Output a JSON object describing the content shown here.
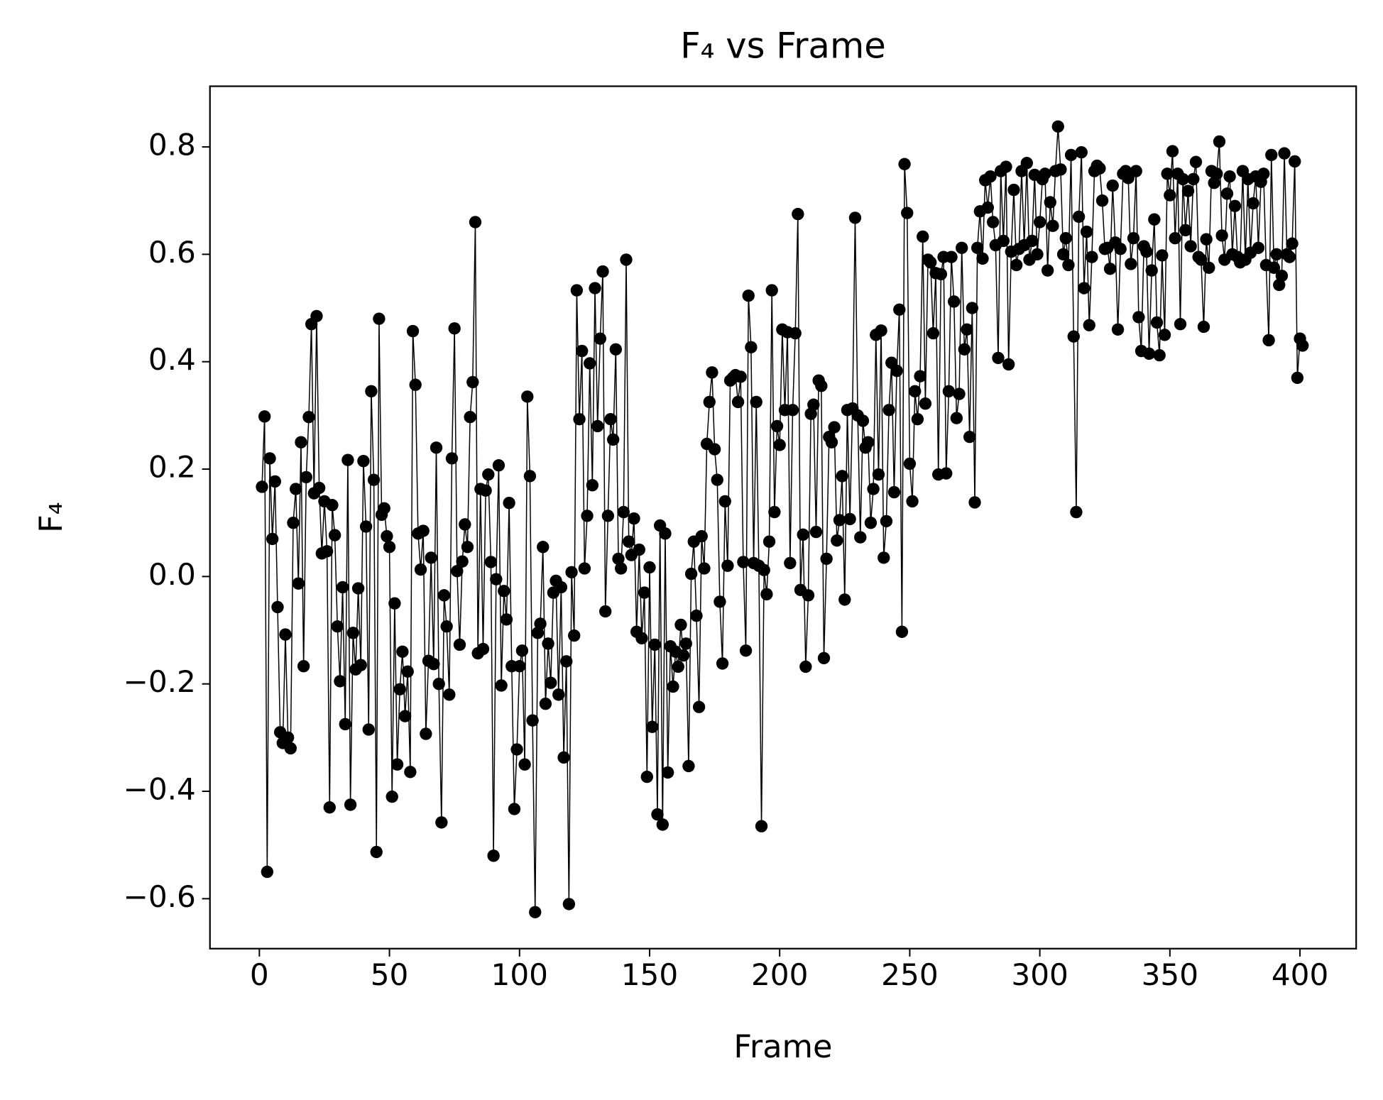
{
  "chart_data": {
    "type": "line",
    "title": "F₄ vs Frame",
    "xlabel": "Frame",
    "ylabel": "F₄",
    "color": "#000000",
    "marker": true,
    "xlim": [
      -19,
      421.6
    ],
    "ylim": [
      -0.693,
      0.913
    ],
    "xticks": [
      0,
      50,
      100,
      150,
      200,
      250,
      300,
      350,
      400
    ],
    "yticks": [
      {
        "value": -0.6,
        "label": "−0.6"
      },
      {
        "value": -0.4,
        "label": "−0.4"
      },
      {
        "value": -0.2,
        "label": "−0.2"
      },
      {
        "value": 0,
        "label": "0.0"
      },
      0.2,
      0.4,
      0.6,
      0.8
    ],
    "x": [
      1,
      2,
      3,
      4,
      5,
      6,
      7,
      8,
      9,
      10,
      11,
      12,
      13,
      14,
      15,
      16,
      17,
      18,
      19,
      20,
      21,
      22,
      23,
      24,
      25,
      26,
      27,
      28,
      29,
      30,
      31,
      32,
      33,
      34,
      35,
      36,
      37,
      38,
      39,
      40,
      41,
      42,
      43,
      44,
      45,
      46,
      47,
      48,
      49,
      50,
      51,
      52,
      53,
      54,
      55,
      56,
      57,
      58,
      59,
      60,
      61,
      62,
      63,
      64,
      65,
      66,
      67,
      68,
      69,
      70,
      71,
      72,
      73,
      74,
      75,
      76,
      77,
      78,
      79,
      80,
      81,
      82,
      83,
      84,
      85,
      86,
      87,
      88,
      89,
      90,
      91,
      92,
      93,
      94,
      95,
      96,
      97,
      98,
      99,
      100,
      101,
      102,
      103,
      104,
      105,
      106,
      107,
      108,
      109,
      110,
      111,
      112,
      113,
      114,
      115,
      116,
      117,
      118,
      119,
      120,
      121,
      122,
      123,
      124,
      125,
      126,
      127,
      128,
      129,
      130,
      131,
      132,
      133,
      134,
      135,
      136,
      137,
      138,
      139,
      140,
      141,
      142,
      143,
      144,
      145,
      146,
      147,
      148,
      149,
      150,
      151,
      152,
      153,
      154,
      155,
      156,
      157,
      158,
      159,
      160,
      161,
      162,
      163,
      164,
      165,
      166,
      167,
      168,
      169,
      170,
      171,
      172,
      173,
      174,
      175,
      176,
      177,
      178,
      179,
      180,
      181,
      182,
      183,
      184,
      185,
      186,
      187,
      188,
      189,
      190,
      191,
      192,
      193,
      194,
      195,
      196,
      197,
      198,
      199,
      200,
      201,
      202,
      203,
      204,
      205,
      206,
      207,
      208,
      209,
      210,
      211,
      212,
      213,
      214,
      215,
      216,
      217,
      218,
      219,
      220,
      221,
      222,
      223,
      224,
      225,
      226,
      227,
      228,
      229,
      230,
      231,
      232,
      233,
      234,
      235,
      236,
      237,
      238,
      239,
      240,
      241,
      242,
      243,
      244,
      245,
      246,
      247,
      248,
      249,
      250,
      251,
      252,
      253,
      254,
      255,
      256,
      257,
      258,
      259,
      260,
      261,
      262,
      263,
      264,
      265,
      266,
      267,
      268,
      269,
      270,
      271,
      272,
      273,
      274,
      275,
      276,
      277,
      278,
      279,
      280,
      281,
      282,
      283,
      284,
      285,
      286,
      287,
      288,
      289,
      290,
      291,
      292,
      293,
      294,
      295,
      296,
      297,
      298,
      299,
      300,
      301,
      302,
      303,
      304,
      305,
      306,
      307,
      308,
      309,
      310,
      311,
      312,
      313,
      314,
      315,
      316,
      317,
      318,
      319,
      320,
      321,
      322,
      323,
      324,
      325,
      326,
      327,
      328,
      329,
      330,
      331,
      332,
      333,
      334,
      335,
      336,
      337,
      338,
      339,
      340,
      341,
      342,
      343,
      344,
      345,
      346,
      347,
      348,
      349,
      350,
      351,
      352,
      353,
      354,
      355,
      356,
      357,
      358,
      359,
      360,
      361,
      362,
      363,
      364,
      365,
      366,
      367,
      368,
      369,
      370,
      371,
      372,
      373,
      374,
      375,
      376,
      377,
      378,
      379,
      380,
      381,
      382,
      383,
      384,
      385,
      386,
      387,
      388,
      389,
      390,
      391,
      392,
      393,
      394,
      395,
      396,
      397,
      398,
      399,
      400,
      401
    ],
    "values": [
      0.167,
      0.298,
      -0.55,
      0.22,
      0.07,
      0.177,
      -0.057,
      -0.29,
      -0.31,
      -0.108,
      -0.3,
      -0.32,
      0.1,
      0.163,
      -0.013,
      0.25,
      -0.167,
      0.185,
      0.297,
      0.47,
      0.155,
      0.485,
      0.165,
      0.043,
      0.14,
      0.047,
      -0.43,
      0.133,
      0.077,
      -0.093,
      -0.195,
      -0.02,
      -0.275,
      0.217,
      -0.425,
      -0.105,
      -0.173,
      -0.022,
      -0.165,
      0.215,
      0.093,
      -0.285,
      0.345,
      0.18,
      -0.513,
      0.48,
      0.115,
      0.127,
      0.075,
      0.055,
      -0.41,
      -0.05,
      -0.35,
      -0.21,
      -0.14,
      -0.26,
      -0.177,
      -0.364,
      0.457,
      0.357,
      0.08,
      0.013,
      0.085,
      -0.293,
      -0.157,
      0.035,
      -0.163,
      0.24,
      -0.2,
      -0.458,
      -0.035,
      -0.093,
      -0.22,
      0.22,
      0.462,
      0.01,
      -0.127,
      0.028,
      0.097,
      0.055,
      0.297,
      0.362,
      0.66,
      -0.143,
      0.163,
      -0.135,
      0.16,
      0.19,
      0.027,
      -0.52,
      -0.005,
      0.207,
      -0.203,
      -0.027,
      -0.08,
      0.137,
      -0.167,
      -0.433,
      -0.322,
      -0.167,
      -0.138,
      -0.35,
      0.335,
      0.187,
      -0.268,
      -0.625,
      -0.105,
      -0.088,
      0.055,
      -0.237,
      -0.125,
      -0.198,
      -0.03,
      -0.008,
      -0.22,
      -0.02,
      -0.337,
      -0.158,
      -0.61,
      0.008,
      -0.11,
      0.533,
      0.293,
      0.42,
      0.015,
      0.113,
      0.397,
      0.17,
      0.537,
      0.28,
      0.443,
      0.568,
      -0.065,
      0.113,
      0.293,
      0.255,
      0.423,
      0.033,
      0.015,
      0.12,
      0.59,
      0.065,
      0.04,
      0.108,
      -0.103,
      0.05,
      -0.115,
      -0.03,
      -0.373,
      0.017,
      -0.28,
      -0.127,
      -0.443,
      0.095,
      -0.462,
      0.08,
      -0.365,
      -0.13,
      -0.205,
      -0.14,
      -0.168,
      -0.09,
      -0.147,
      -0.125,
      -0.353,
      0.005,
      0.065,
      -0.073,
      -0.243,
      0.075,
      0.015,
      0.247,
      0.325,
      0.38,
      0.237,
      0.18,
      -0.047,
      -0.162,
      0.14,
      0.02,
      0.365,
      0.37,
      0.375,
      0.325,
      0.372,
      0.027,
      -0.138,
      0.523,
      0.427,
      0.025,
      0.325,
      0.02,
      -0.465,
      0.012,
      -0.033,
      0.065,
      0.533,
      0.12,
      0.28,
      0.245,
      0.46,
      0.31,
      0.455,
      0.025,
      0.31,
      0.453,
      0.675,
      -0.025,
      0.078,
      -0.168,
      -0.035,
      0.303,
      0.32,
      0.083,
      0.365,
      0.355,
      -0.152,
      0.033,
      0.26,
      0.25,
      0.278,
      0.067,
      0.105,
      0.187,
      -0.043,
      0.31,
      0.107,
      0.313,
      0.668,
      0.3,
      0.073,
      0.29,
      0.24,
      0.25,
      0.1,
      0.163,
      0.45,
      0.19,
      0.458,
      0.035,
      0.103,
      0.31,
      0.398,
      0.157,
      0.383,
      0.497,
      -0.103,
      0.768,
      0.677,
      0.21,
      0.14,
      0.345,
      0.293,
      0.373,
      0.633,
      0.322,
      0.59,
      0.585,
      0.453,
      0.565,
      0.19,
      0.563,
      0.595,
      0.192,
      0.345,
      0.595,
      0.512,
      0.295,
      0.34,
      0.612,
      0.423,
      0.46,
      0.26,
      0.5,
      0.138,
      0.612,
      0.68,
      0.592,
      0.738,
      0.687,
      0.745,
      0.66,
      0.617,
      0.407,
      0.755,
      0.625,
      0.763,
      0.395,
      0.605,
      0.72,
      0.58,
      0.61,
      0.755,
      0.617,
      0.77,
      0.59,
      0.625,
      0.748,
      0.6,
      0.66,
      0.74,
      0.75,
      0.57,
      0.697,
      0.653,
      0.755,
      0.838,
      0.758,
      0.6,
      0.63,
      0.58,
      0.785,
      0.447,
      0.12,
      0.67,
      0.79,
      0.537,
      0.642,
      0.468,
      0.595,
      0.755,
      0.765,
      0.76,
      0.7,
      0.61,
      0.612,
      0.573,
      0.728,
      0.622,
      0.46,
      0.61,
      0.75,
      0.755,
      0.742,
      0.582,
      0.63,
      0.755,
      0.483,
      0.42,
      0.615,
      0.605,
      0.415,
      0.57,
      0.665,
      0.473,
      0.412,
      0.598,
      0.45,
      0.75,
      0.71,
      0.792,
      0.63,
      0.75,
      0.47,
      0.74,
      0.645,
      0.718,
      0.615,
      0.74,
      0.772,
      0.595,
      0.59,
      0.465,
      0.628,
      0.575,
      0.755,
      0.733,
      0.75,
      0.81,
      0.635,
      0.59,
      0.713,
      0.745,
      0.6,
      0.69,
      0.595,
      0.585,
      0.755,
      0.59,
      0.74,
      0.603,
      0.695,
      0.745,
      0.612,
      0.735,
      0.75,
      0.58,
      0.44,
      0.785,
      0.575,
      0.6,
      0.543,
      0.56,
      0.788,
      0.6,
      0.595,
      0.62,
      0.773,
      0.37,
      0.443,
      0.43
    ]
  }
}
